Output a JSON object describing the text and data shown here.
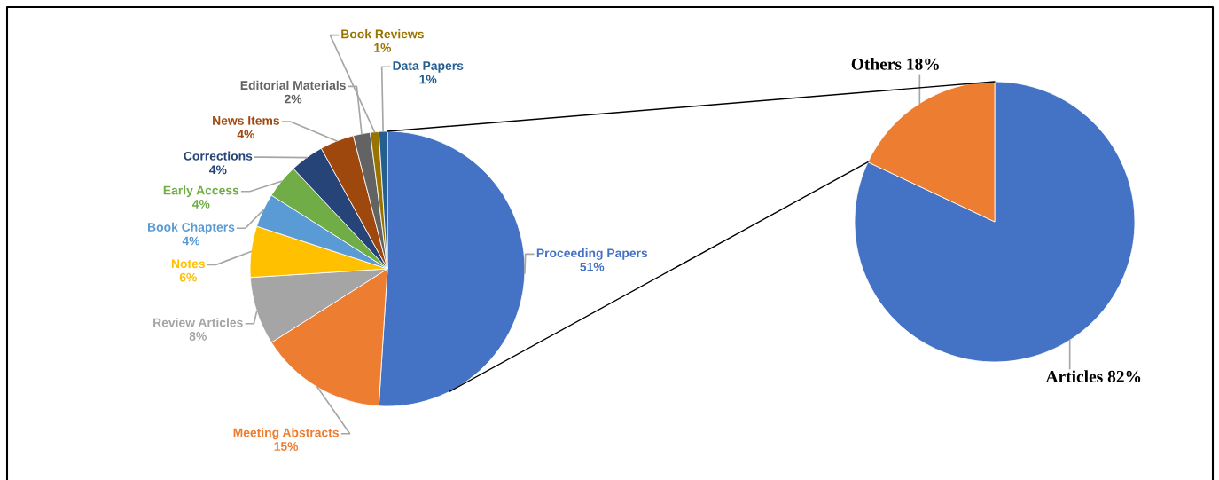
{
  "chart_data": [
    {
      "type": "pie",
      "categories": [
        "Proceeding Papers",
        "Meeting Abstracts",
        "Review Articles",
        "Notes",
        "Book Chapters",
        "Early Access",
        "Corrections",
        "News Items",
        "Editorial Materials",
        "Book Reviews",
        "Data Papers"
      ],
      "values": [
        51,
        15,
        8,
        6,
        4,
        4,
        4,
        4,
        2,
        1,
        1
      ],
      "colors": [
        "#4472c4",
        "#ed7d31",
        "#a5a5a5",
        "#ffc000",
        "#5b9bd5",
        "#70ad47",
        "#264478",
        "#9e480e",
        "#636363",
        "#997300",
        "#255e91"
      ],
      "value_labels": [
        "51%",
        "15%",
        "8%",
        "6%",
        "4%",
        "4%",
        "4%",
        "4%",
        "2%",
        "1%",
        "1%"
      ]
    },
    {
      "type": "pie",
      "categories": [
        "Articles",
        "Others"
      ],
      "values": [
        82,
        18
      ],
      "colors": [
        "#4472c4",
        "#ed7d31"
      ],
      "value_labels": [
        "82%",
        "18%"
      ]
    }
  ]
}
